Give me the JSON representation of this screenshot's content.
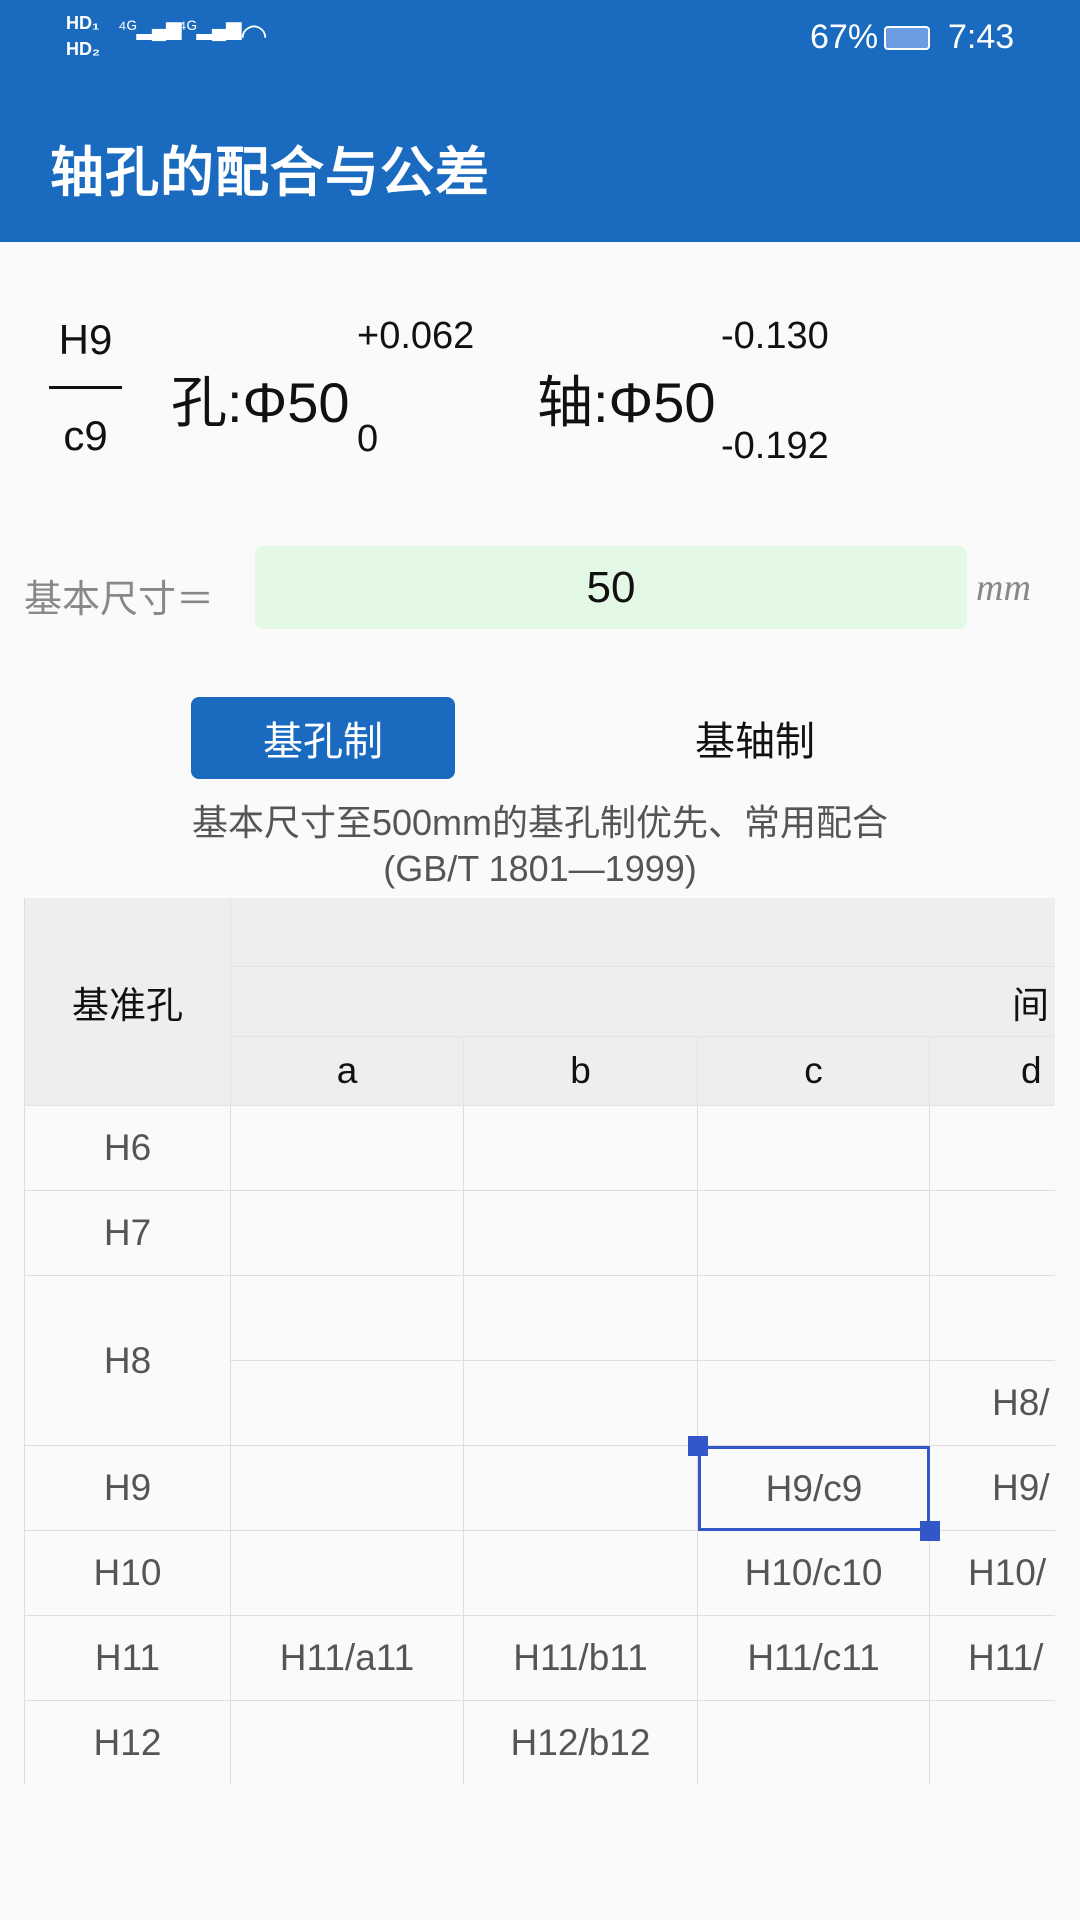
{
  "status_bar": {
    "left_icons": [
      "hd1-icon",
      "hd2-icon",
      "signal-4g-icon",
      "signal-4g-icon",
      "wifi-icon"
    ],
    "battery": "67%",
    "time": "7:43"
  },
  "app_bar": {
    "title": "轴孔的配合与公差",
    "color": "#1a6bbf"
  },
  "fit": {
    "hole_code": "H9",
    "shaft_code": "c9",
    "hole_label": "孔:Φ50",
    "hole_upper": "+0.062",
    "hole_lower": "0",
    "shaft_label": "轴:Φ50",
    "shaft_upper": "-0.130",
    "shaft_lower": "-0.192"
  },
  "basic_size": {
    "label": "基本尺寸＝",
    "value": "50",
    "unit": "mm"
  },
  "mode_buttons": {
    "hole_basis": "基孔制",
    "shaft_basis": "基轴制",
    "selected": "hole_basis"
  },
  "caption": {
    "line1": "基本尺寸至500mm的基孔制优先、常用配合",
    "line2": "(GB/T 1801—1999)"
  },
  "table": {
    "corner": "基准孔",
    "group_header": "间",
    "columns": [
      "a",
      "b",
      "c",
      "d"
    ],
    "rows": [
      {
        "label": "H6",
        "cells": [
          "",
          "",
          "",
          ""
        ]
      },
      {
        "label": "H7",
        "cells": [
          "",
          "",
          "",
          ""
        ]
      },
      {
        "label": "H8",
        "cells": [
          "",
          "",
          "",
          ""
        ],
        "cells2": [
          "",
          "",
          "",
          "H8/"
        ]
      },
      {
        "label": "H9",
        "cells": [
          "",
          "",
          "H9/c9",
          "H9/"
        ]
      },
      {
        "label": "H10",
        "cells": [
          "",
          "",
          "H10/c10",
          "H10/"
        ]
      },
      {
        "label": "H11",
        "cells": [
          "H11/a11",
          "H11/b11",
          "H11/c11",
          "H11/"
        ]
      },
      {
        "label": "H12",
        "cells": [
          "",
          "H12/b12",
          "",
          ""
        ]
      }
    ],
    "selected_cell": "H9/c9"
  }
}
